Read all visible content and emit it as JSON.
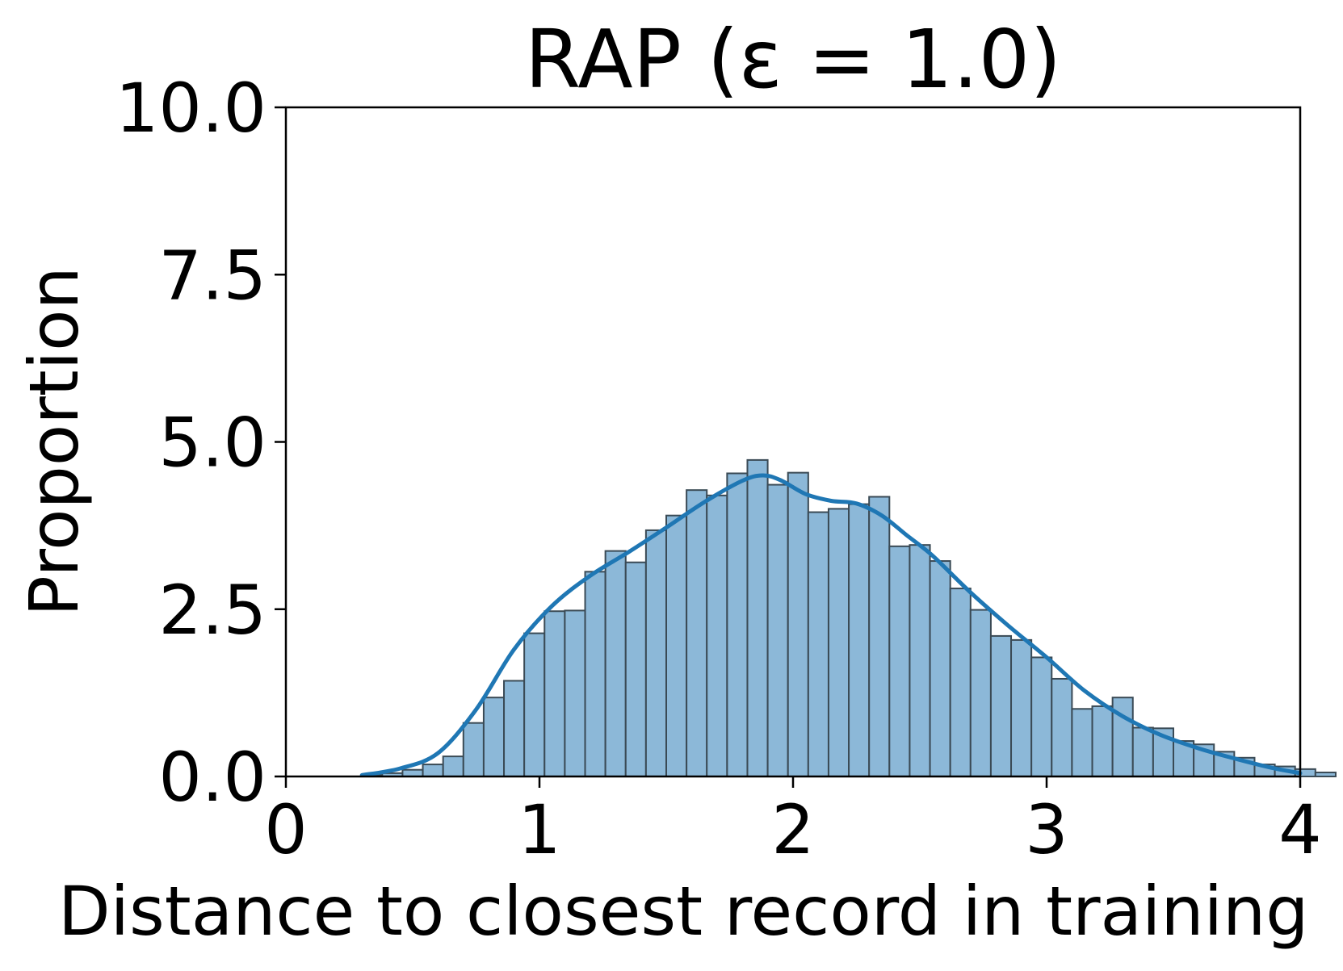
{
  "chart_data": {
    "type": "bar",
    "title": "RAP (ε = 1.0)",
    "xlabel": "Distance to closest record in training",
    "ylabel": "Proportion",
    "xlim": [
      0,
      4
    ],
    "ylim": [
      0,
      10
    ],
    "xticks": [
      0,
      1,
      2,
      3,
      4
    ],
    "yticks": [
      0,
      2.5,
      5,
      7.5,
      10
    ],
    "xtick_labels": [
      "0",
      "1",
      "2",
      "3",
      "4"
    ],
    "ytick_labels": [
      "0.0",
      "2.5",
      "5.0",
      "7.5",
      "10.0"
    ],
    "grid": false,
    "legend": "none",
    "bins": {
      "start": 0.3,
      "width": 0.08,
      "values": [
        0.02,
        0.05,
        0.1,
        0.18,
        0.3,
        0.8,
        1.18,
        1.43,
        2.14,
        2.47,
        2.48,
        3.06,
        3.37,
        3.2,
        3.68,
        3.9,
        4.28,
        4.2,
        4.53,
        4.73,
        4.36,
        4.54,
        3.95,
        4.0,
        4.07,
        4.18,
        3.44,
        3.46,
        3.22,
        2.81,
        2.49,
        2.1,
        2.04,
        1.78,
        1.46,
        1.01,
        1.05,
        1.18,
        0.73,
        0.72,
        0.53,
        0.48,
        0.37,
        0.28,
        0.18,
        0.15,
        0.11,
        0.06
      ]
    },
    "kde": {
      "x": [
        0.3,
        0.45,
        0.6,
        0.75,
        0.9,
        1.05,
        1.2,
        1.35,
        1.5,
        1.65,
        1.8,
        1.88,
        1.95,
        2.05,
        2.15,
        2.25,
        2.35,
        2.45,
        2.55,
        2.7,
        2.85,
        3.0,
        3.15,
        3.3,
        3.45,
        3.6,
        3.75,
        3.9,
        4.0
      ],
      "y": [
        0.02,
        0.12,
        0.35,
        1.0,
        1.9,
        2.55,
        3.0,
        3.35,
        3.72,
        4.1,
        4.42,
        4.5,
        4.43,
        4.22,
        4.12,
        4.08,
        3.9,
        3.6,
        3.3,
        2.75,
        2.25,
        1.78,
        1.28,
        0.9,
        0.62,
        0.42,
        0.26,
        0.12,
        0.05
      ]
    },
    "colors": {
      "bar_fill": "#8cb8d8",
      "bar_edge": "#3a4a55",
      "kde_line": "#1f77b4"
    }
  }
}
